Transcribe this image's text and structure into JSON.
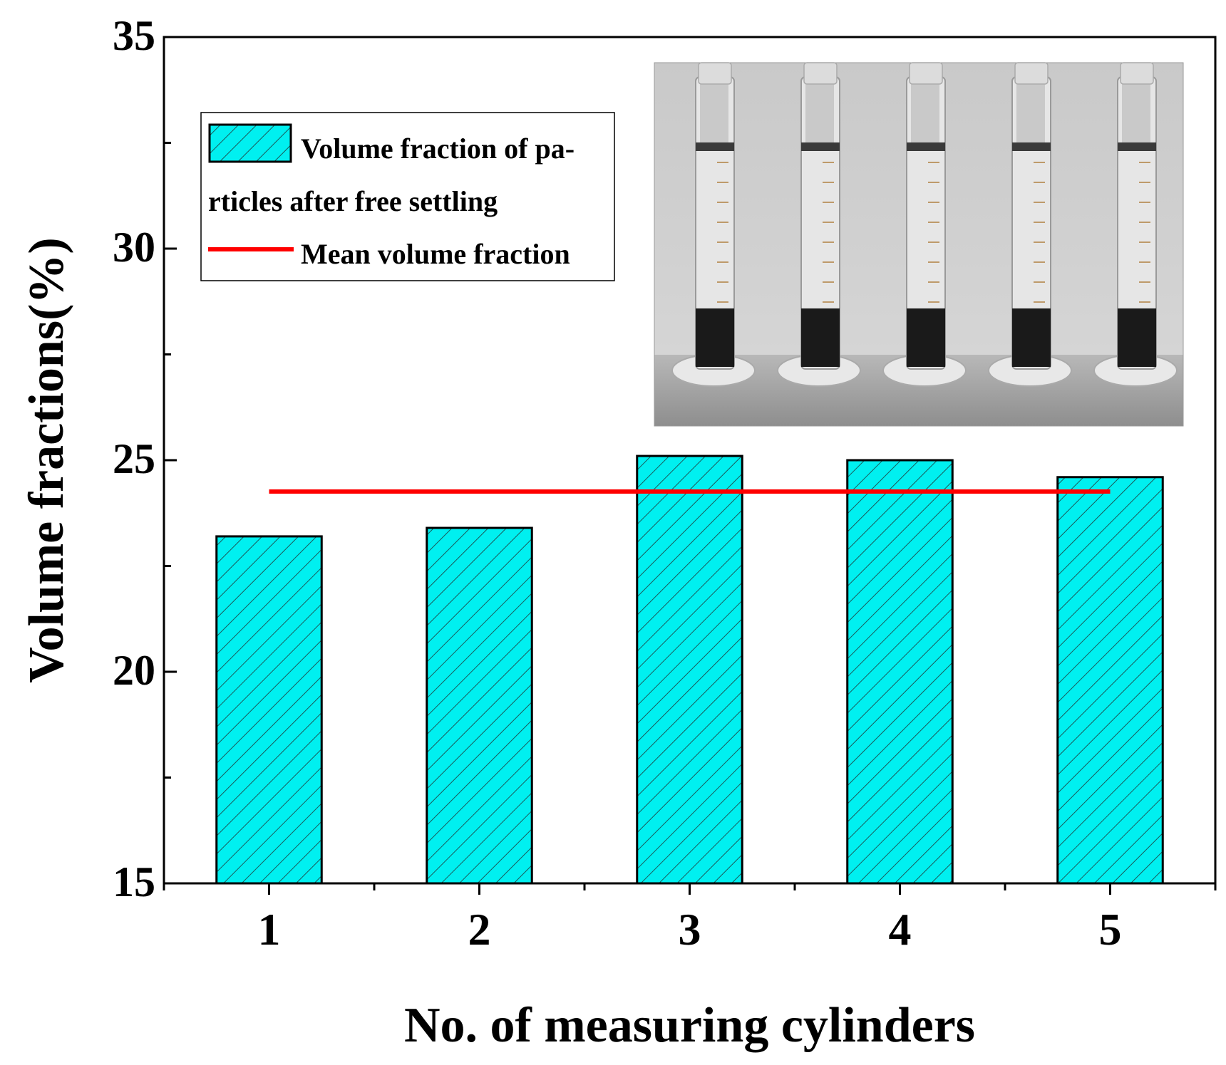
{
  "chart_data": {
    "type": "bar",
    "categories": [
      "1",
      "2",
      "3",
      "4",
      "5"
    ],
    "series": [
      {
        "name": "Volume fraction of particles after free settling",
        "values": [
          23.2,
          23.4,
          25.1,
          25.0,
          24.6
        ]
      }
    ],
    "mean_line": {
      "name": "Mean volume fraction",
      "value": 24.26
    },
    "xlabel": "No. of measuring cylinders",
    "ylabel": "Volume fractions(%)",
    "ylim": [
      15,
      35
    ],
    "yticks": [
      15,
      20,
      25,
      30,
      35
    ],
    "legend": {
      "placement": "top-left",
      "bar_label_line1": "Volume fraction of pa-",
      "bar_label_line2": "rticles after free settling",
      "line_label": "Mean volume fraction"
    },
    "inset": {
      "type": "photo",
      "placement": "top-right",
      "description_hidden": true,
      "cylinder_count": 5
    },
    "colors": {
      "bar_fill": "#00f0f0",
      "bar_hatch": "#1a5a5a",
      "mean_line": "#ff0000",
      "axis": "#000000"
    },
    "grid": false
  }
}
